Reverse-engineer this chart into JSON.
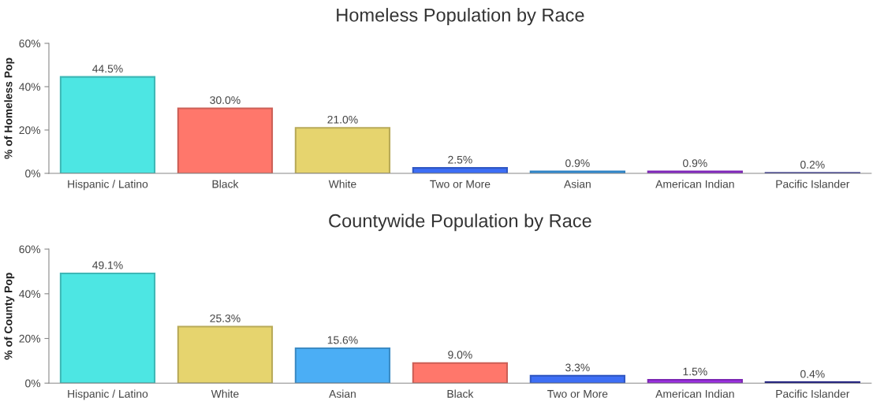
{
  "chart_data": [
    {
      "type": "bar",
      "title": "Homeless Population by Race",
      "ylabel": "% of Homeless Pop",
      "categories": [
        "Hispanic / Latino",
        "Black",
        "White",
        "Two or More",
        "Asian",
        "American Indian",
        "Pacific Islander"
      ],
      "values": [
        44.5,
        30.0,
        21.0,
        2.5,
        0.9,
        0.9,
        0.2
      ],
      "value_labels": [
        "44.5%",
        "30.0%",
        "21.0%",
        "2.5%",
        "0.9%",
        "0.9%",
        "0.2%"
      ],
      "colors": [
        "#4de6e3",
        "#ff776b",
        "#e6d46e",
        "#3d6ef5",
        "#3aa0f0",
        "#9b30e0",
        "#1a1a9c"
      ],
      "ylim": [
        0,
        60
      ],
      "yticks": [
        {
          "value": 0,
          "label": "0%"
        },
        {
          "value": 20,
          "label": "20%"
        },
        {
          "value": 40,
          "label": "40%"
        },
        {
          "value": 60,
          "label": "60%"
        }
      ],
      "grid": false,
      "legend": false
    },
    {
      "type": "bar",
      "title": "Countywide Population by Race",
      "ylabel": "% of County Pop",
      "categories": [
        "Hispanic / Latino",
        "White",
        "Asian",
        "Black",
        "Two or More",
        "American Indian",
        "Pacific Islander"
      ],
      "values": [
        49.1,
        25.3,
        15.6,
        9.0,
        3.3,
        1.5,
        0.4
      ],
      "value_labels": [
        "49.1%",
        "25.3%",
        "15.6%",
        "9.0%",
        "3.3%",
        "1.5%",
        "0.4%"
      ],
      "colors": [
        "#4de6e3",
        "#e6d46e",
        "#4baef5",
        "#ff776b",
        "#3d6ef5",
        "#9b30e0",
        "#1a1a9c"
      ],
      "ylim": [
        0,
        60
      ],
      "yticks": [
        {
          "value": 0,
          "label": "0%"
        },
        {
          "value": 20,
          "label": "20%"
        },
        {
          "value": 40,
          "label": "40%"
        },
        {
          "value": 60,
          "label": "60%"
        }
      ],
      "grid": false,
      "legend": false
    }
  ]
}
